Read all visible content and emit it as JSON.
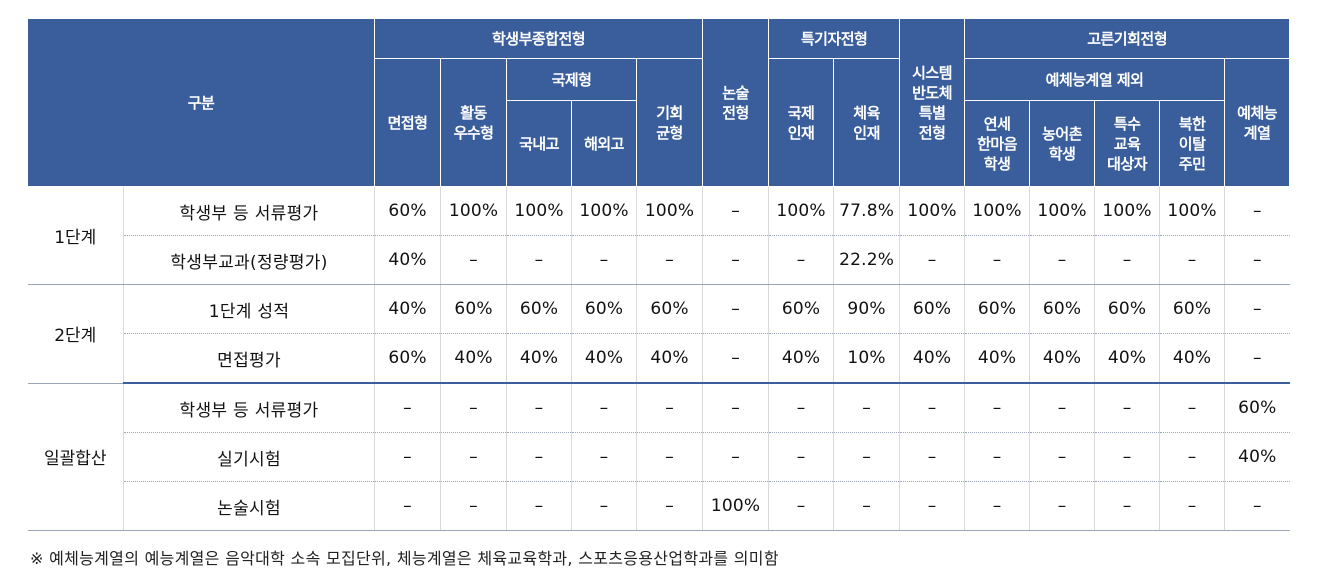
{
  "header": {
    "gubun": "구분",
    "groups": {
      "student_comprehensive": "학생부종합전형",
      "essay": "논술\n전형",
      "talent": "특기자전형",
      "system_semi": "시스템\n반도체\n특별\n전형",
      "equal_opportunity": "고른기회전형"
    },
    "sub": {
      "interview": "면접형",
      "activity": "활동\n우수형",
      "international": "국제형",
      "domestic": "국내고",
      "overseas": "해외고",
      "balance": "기회\n균형",
      "intl_talent": "국제\n인재",
      "sports_talent": "체육\n인재",
      "excl_arts": "예체능계열 제외",
      "yonsei": "연세\n한마음\n학생",
      "farm": "농어촌\n학생",
      "special_edu": "특수\n교육\n대상자",
      "nk": "북한\n이탈\n주민",
      "arts": "예체능\n계열"
    }
  },
  "stages": [
    {
      "name": "1단계",
      "rows": [
        {
          "item": "학생부 등 서류평가",
          "values": [
            "60%",
            "100%",
            "100%",
            "100%",
            "100%",
            "–",
            "100%",
            "77.8%",
            "100%",
            "100%",
            "100%",
            "100%",
            "100%",
            "–"
          ]
        },
        {
          "item": "학생부교과(정량평가)",
          "values": [
            "40%",
            "–",
            "–",
            "–",
            "–",
            "–",
            "–",
            "22.2%",
            "–",
            "–",
            "–",
            "–",
            "–",
            "–"
          ]
        }
      ]
    },
    {
      "name": "2단계",
      "rows": [
        {
          "item": "1단계 성적",
          "values": [
            "40%",
            "60%",
            "60%",
            "60%",
            "60%",
            "–",
            "60%",
            "90%",
            "60%",
            "60%",
            "60%",
            "60%",
            "60%",
            "–"
          ]
        },
        {
          "item": "면접평가",
          "values": [
            "60%",
            "40%",
            "40%",
            "40%",
            "40%",
            "–",
            "40%",
            "10%",
            "40%",
            "40%",
            "40%",
            "40%",
            "40%",
            "–"
          ]
        }
      ]
    },
    {
      "name": "일괄합산",
      "rows": [
        {
          "item": "학생부 등 서류평가",
          "values": [
            "–",
            "–",
            "–",
            "–",
            "–",
            "–",
            "–",
            "–",
            "–",
            "–",
            "–",
            "–",
            "–",
            "60%"
          ]
        },
        {
          "item": "실기시험",
          "values": [
            "–",
            "–",
            "–",
            "–",
            "–",
            "–",
            "–",
            "–",
            "–",
            "–",
            "–",
            "–",
            "–",
            "40%"
          ]
        },
        {
          "item": "논술시험",
          "values": [
            "–",
            "–",
            "–",
            "–",
            "–",
            "100%",
            "–",
            "–",
            "–",
            "–",
            "–",
            "–",
            "–",
            "–"
          ]
        }
      ]
    }
  ],
  "footnote": "※ 예체능계열의 예능계열은 음악대학 소속 모집단위, 체능계열은 체육교육학과, 스포츠응용산업학과를 의미함"
}
